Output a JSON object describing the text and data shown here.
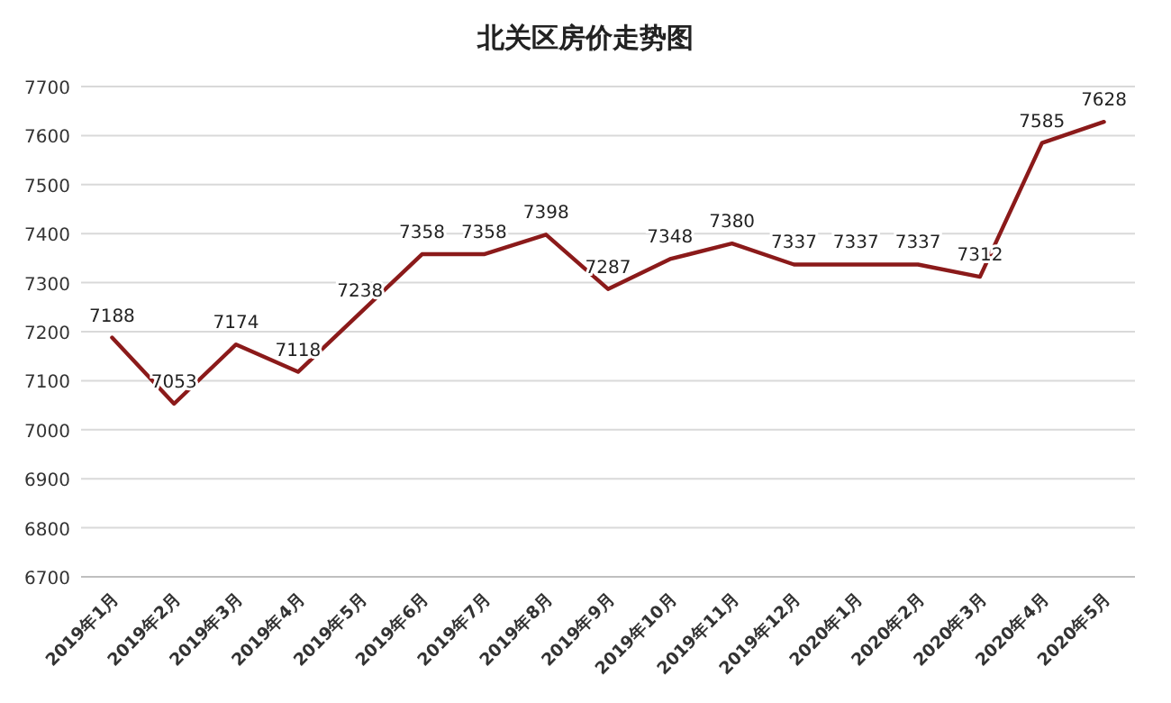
{
  "chart_data": {
    "type": "line",
    "title": "北关区房价走势图",
    "categories": [
      "2019年1月",
      "2019年2月",
      "2019年3月",
      "2019年4月",
      "2019年5月",
      "2019年6月",
      "2019年7月",
      "2019年8月",
      "2019年9月",
      "2019年10月",
      "2019年11月",
      "2019年12月",
      "2020年1月",
      "2020年2月",
      "2020年3月",
      "2020年4月",
      "2020年5月"
    ],
    "series": [
      {
        "color": "#8b1a1a",
        "values": [
          7188,
          7053,
          7174,
          7118,
          7238,
          7358,
          7358,
          7398,
          7287,
          7348,
          7380,
          7337,
          7337,
          7337,
          7312,
          7585,
          7628
        ]
      }
    ],
    "ylim": [
      6700,
      7700
    ],
    "yticks": [
      6700,
      6800,
      6900,
      7000,
      7100,
      7200,
      7300,
      7400,
      7500,
      7600,
      7700
    ],
    "grid": "y",
    "data_labels": true,
    "marker": "none",
    "line_style": "solid"
  }
}
